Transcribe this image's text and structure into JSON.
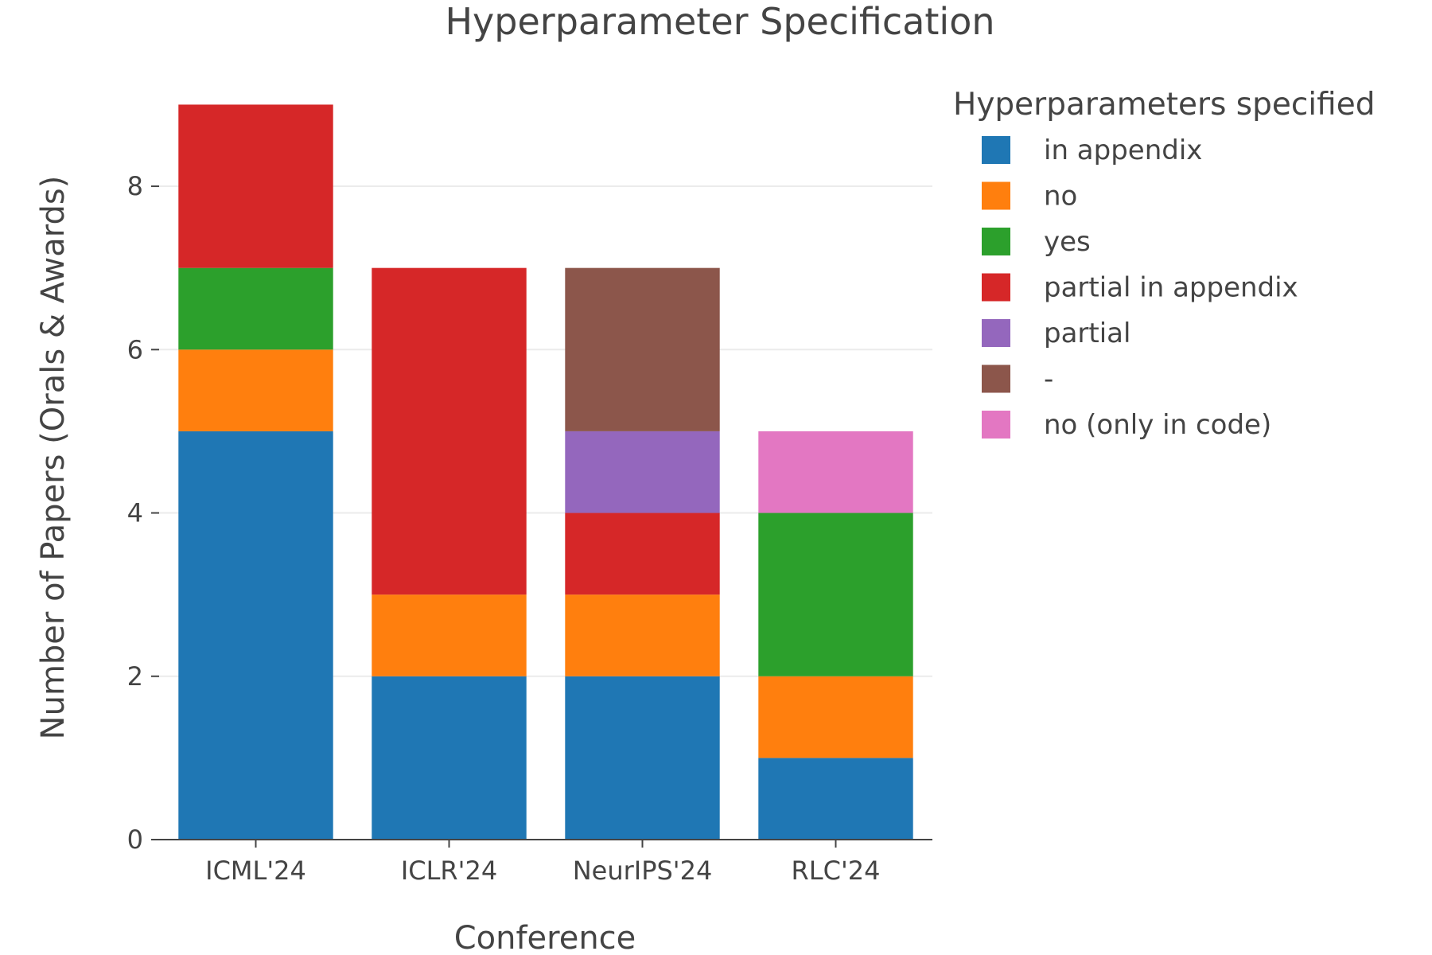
{
  "chart_data": {
    "type": "bar",
    "stacked": true,
    "title": "Hyperparameter Specification",
    "xlabel": "Conference",
    "ylabel": "Number of Papers (Orals & Awards)",
    "categories": [
      "ICML'24",
      "ICLR'24",
      "NeurIPS'24",
      "RLC'24"
    ],
    "ylim": [
      0,
      9.55
    ],
    "yticks": [
      0,
      2,
      4,
      6,
      8
    ],
    "grid": true,
    "legend": {
      "title": "Hyperparameters specified",
      "placement": "right"
    },
    "series": [
      {
        "name": "in appendix",
        "color": "#1f77b4",
        "values": [
          5,
          2,
          2,
          1
        ]
      },
      {
        "name": "no",
        "color": "#ff7f0e",
        "values": [
          1,
          1,
          1,
          1
        ]
      },
      {
        "name": "yes",
        "color": "#2ca02c",
        "values": [
          1,
          0,
          0,
          2
        ]
      },
      {
        "name": "partial in appendix",
        "color": "#d62728",
        "values": [
          2,
          4,
          1,
          0
        ]
      },
      {
        "name": "partial",
        "color": "#9467bd",
        "values": [
          0,
          0,
          1,
          0
        ]
      },
      {
        "name": "-",
        "color": "#8c564b",
        "values": [
          0,
          0,
          2,
          0
        ]
      },
      {
        "name": "no (only in code)",
        "color": "#e377c2",
        "values": [
          0,
          0,
          0,
          1
        ]
      }
    ]
  }
}
